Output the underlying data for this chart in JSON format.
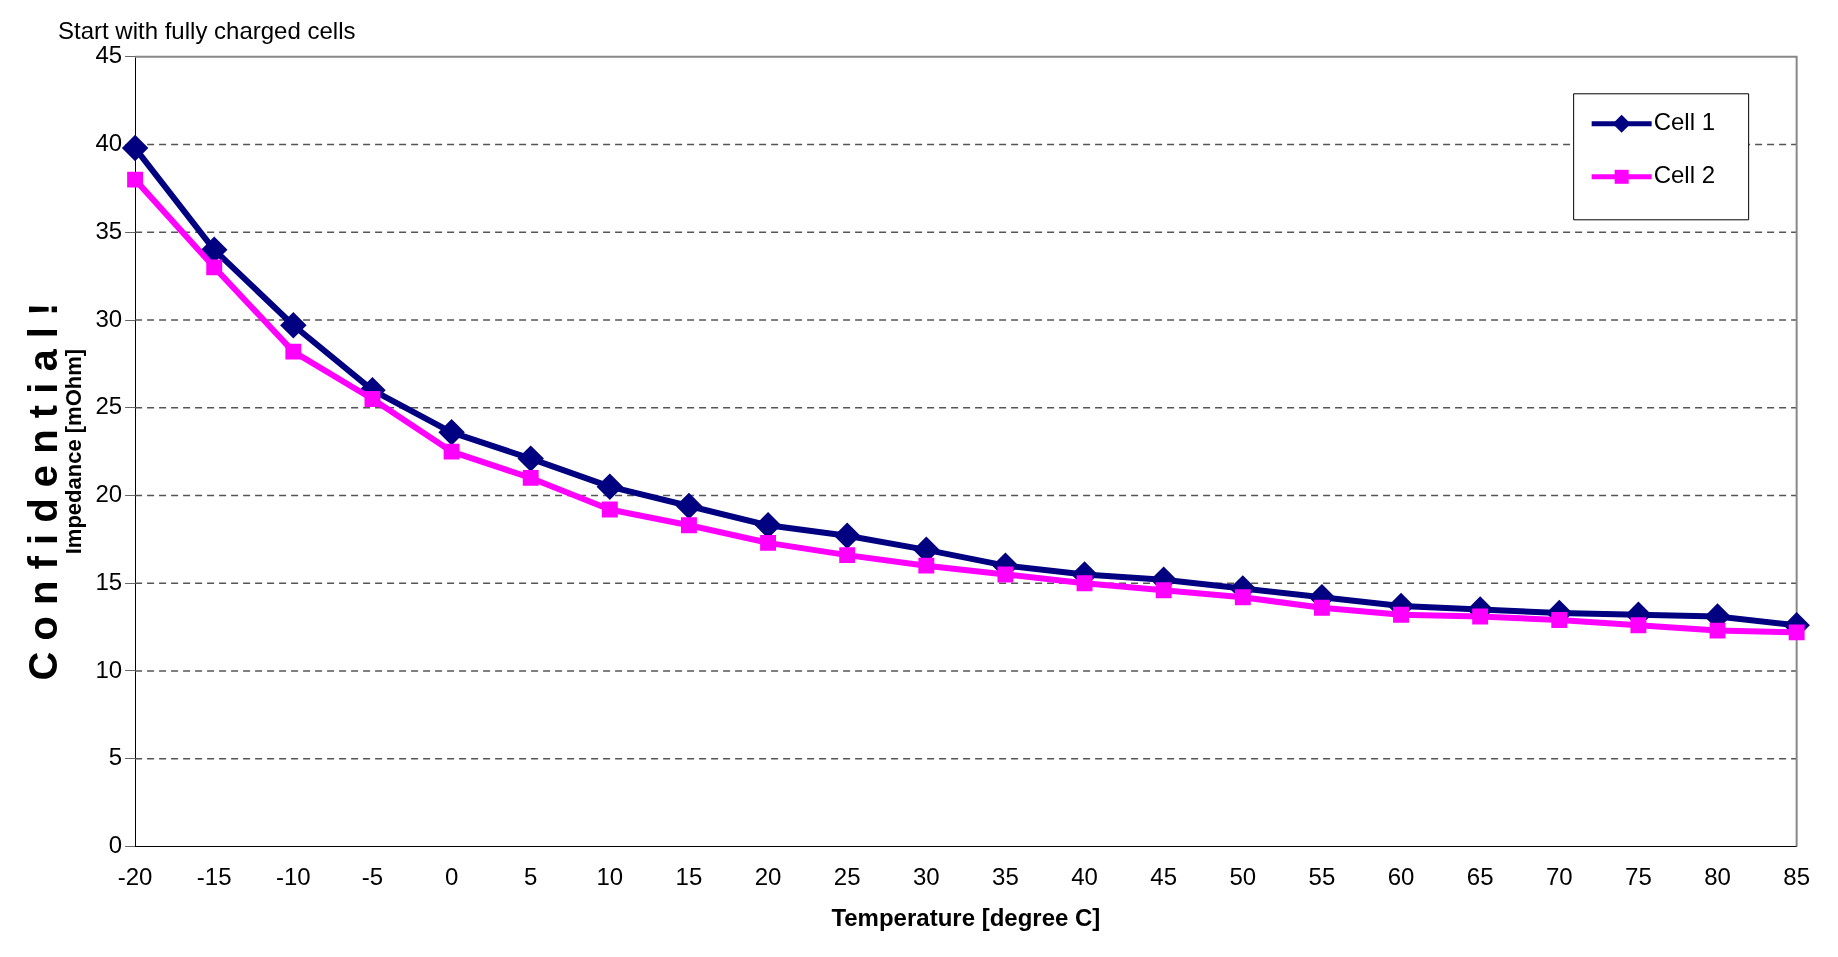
{
  "chart_data": {
    "type": "line",
    "subtitle": "Start with fully charged cells",
    "xlabel": "Temperature [degree C]",
    "ylabel": "Impedance [mOhm]",
    "annotations": [
      "C o n f i d e n t i a l !"
    ],
    "categories": [
      "-20",
      "-15",
      "-10",
      "-5",
      "0",
      "5",
      "10",
      "15",
      "20",
      "25",
      "30",
      "35",
      "40",
      "45",
      "50",
      "55",
      "60",
      "65",
      "70",
      "75",
      "80",
      "85"
    ],
    "series": [
      {
        "name": "Cell 1",
        "color": "#000080",
        "marker": "diamond",
        "values": [
          39.8,
          34.0,
          29.7,
          26.0,
          23.6,
          22.1,
          20.5,
          19.4,
          18.3,
          17.7,
          16.9,
          16.0,
          15.5,
          15.2,
          14.7,
          14.2,
          13.7,
          13.5,
          13.3,
          13.2,
          13.1,
          12.6
        ]
      },
      {
        "name": "Cell 2",
        "color": "#ff00ff",
        "marker": "square",
        "values": [
          38.0,
          33.0,
          28.2,
          25.5,
          22.5,
          21.0,
          19.2,
          18.3,
          17.3,
          16.6,
          16.0,
          15.5,
          15.0,
          14.6,
          14.2,
          13.6,
          13.2,
          13.1,
          12.9,
          12.6,
          12.3,
          12.2
        ]
      }
    ],
    "ylim": [
      0,
      45
    ],
    "yticks": [
      0,
      5,
      10,
      15,
      20,
      25,
      30,
      35,
      40,
      45
    ],
    "grid": "y",
    "line_style": "solid",
    "legend": "top right"
  }
}
